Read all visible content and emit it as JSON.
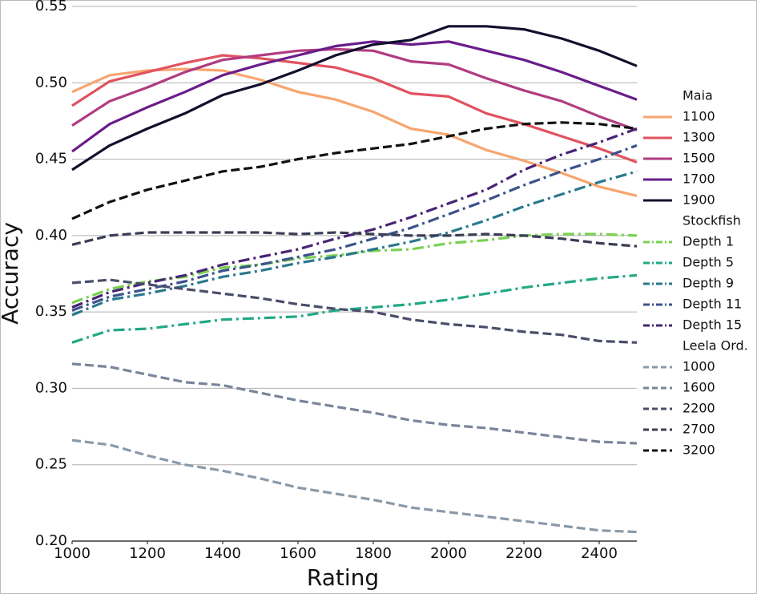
{
  "chart_data": {
    "type": "line",
    "xlabel": "Rating",
    "ylabel": "Accuracy",
    "x": [
      1000,
      1100,
      1200,
      1300,
      1400,
      1500,
      1600,
      1700,
      1800,
      1900,
      2000,
      2100,
      2200,
      2300,
      2400,
      2500
    ],
    "xlim": [
      1000,
      2500
    ],
    "xticks": [
      1000,
      1200,
      1400,
      1600,
      1800,
      2000,
      2200,
      2400
    ],
    "ylim": [
      0.2,
      0.55
    ],
    "yticks": [
      {
        "value": 0.2,
        "label": "0.20"
      },
      {
        "value": 0.25,
        "label": "0.25"
      },
      {
        "value": 0.3,
        "label": "0.30"
      },
      {
        "value": 0.35,
        "label": "0.35"
      },
      {
        "value": 0.4,
        "label": "0.40"
      },
      {
        "value": 0.45,
        "label": "0.45"
      },
      {
        "value": 0.5,
        "label": "0.50"
      },
      {
        "value": 0.55,
        "label": "0.55"
      }
    ],
    "grid": true,
    "series": [
      {
        "group": "Maia",
        "name": "1100",
        "color": "#f8a56f",
        "linestyle": "solid",
        "values": [
          0.494,
          0.505,
          0.508,
          0.509,
          0.508,
          0.502,
          0.494,
          0.489,
          0.481,
          0.47,
          0.466,
          0.456,
          0.449,
          0.441,
          0.432,
          0.426
        ]
      },
      {
        "group": "Maia",
        "name": "1300",
        "color": "#e0525f",
        "linestyle": "solid",
        "values": [
          0.485,
          0.501,
          0.507,
          0.513,
          0.518,
          0.516,
          0.513,
          0.51,
          0.503,
          0.493,
          0.491,
          0.48,
          0.473,
          0.465,
          0.457,
          0.448
        ]
      },
      {
        "group": "Maia",
        "name": "1500",
        "color": "#b03c81",
        "linestyle": "solid",
        "values": [
          0.472,
          0.488,
          0.497,
          0.507,
          0.515,
          0.518,
          0.521,
          0.522,
          0.521,
          0.514,
          0.512,
          0.503,
          0.495,
          0.488,
          0.478,
          0.469
        ]
      },
      {
        "group": "Maia",
        "name": "1700",
        "color": "#6a1c8a",
        "linestyle": "solid",
        "values": [
          0.455,
          0.473,
          0.484,
          0.494,
          0.505,
          0.512,
          0.518,
          0.524,
          0.527,
          0.525,
          0.527,
          0.521,
          0.515,
          0.507,
          0.498,
          0.489
        ]
      },
      {
        "group": "Maia",
        "name": "1900",
        "color": "#13102d",
        "linestyle": "solid",
        "values": [
          0.443,
          0.459,
          0.47,
          0.48,
          0.492,
          0.499,
          0.508,
          0.518,
          0.525,
          0.528,
          0.537,
          0.537,
          0.535,
          0.529,
          0.521,
          0.511
        ]
      },
      {
        "group": "Stockfish",
        "name": "Depth 1",
        "color": "#7ad151",
        "linestyle": "dashdot",
        "values": [
          0.356,
          0.365,
          0.37,
          0.373,
          0.379,
          0.381,
          0.385,
          0.387,
          0.39,
          0.391,
          0.395,
          0.397,
          0.4,
          0.401,
          0.401,
          0.4
        ]
      },
      {
        "group": "Stockfish",
        "name": "Depth 5",
        "color": "#22a884",
        "linestyle": "dashdot",
        "values": [
          0.33,
          0.338,
          0.339,
          0.342,
          0.345,
          0.346,
          0.347,
          0.351,
          0.353,
          0.355,
          0.358,
          0.362,
          0.366,
          0.369,
          0.372,
          0.374
        ]
      },
      {
        "group": "Stockfish",
        "name": "Depth 9",
        "color": "#2a788e",
        "linestyle": "dashdot",
        "values": [
          0.348,
          0.358,
          0.362,
          0.367,
          0.373,
          0.377,
          0.382,
          0.386,
          0.391,
          0.396,
          0.402,
          0.41,
          0.419,
          0.427,
          0.435,
          0.442
        ]
      },
      {
        "group": "Stockfish",
        "name": "Depth 11",
        "color": "#3b528b",
        "linestyle": "dashdot",
        "values": [
          0.351,
          0.36,
          0.365,
          0.37,
          0.377,
          0.381,
          0.386,
          0.391,
          0.398,
          0.405,
          0.414,
          0.423,
          0.433,
          0.442,
          0.45,
          0.459
        ]
      },
      {
        "group": "Stockfish",
        "name": "Depth 15",
        "color": "#482475",
        "linestyle": "dashdot",
        "values": [
          0.353,
          0.363,
          0.369,
          0.374,
          0.381,
          0.386,
          0.391,
          0.398,
          0.404,
          0.412,
          0.421,
          0.43,
          0.443,
          0.453,
          0.461,
          0.47
        ]
      },
      {
        "group": "Leela Ord.",
        "name": "1000",
        "color": "#8a9aa9",
        "linestyle": "dashed",
        "values": [
          0.266,
          0.263,
          0.256,
          0.25,
          0.246,
          0.241,
          0.235,
          0.231,
          0.227,
          0.222,
          0.219,
          0.216,
          0.213,
          0.21,
          0.207,
          0.206
        ]
      },
      {
        "group": "Leela Ord.",
        "name": "1600",
        "color": "#7a859a",
        "linestyle": "dashed",
        "values": [
          0.316,
          0.314,
          0.309,
          0.304,
          0.302,
          0.297,
          0.292,
          0.288,
          0.284,
          0.279,
          0.276,
          0.274,
          0.271,
          0.268,
          0.265,
          0.264
        ]
      },
      {
        "group": "Leela Ord.",
        "name": "2200",
        "color": "#4a4e6a",
        "linestyle": "dashed",
        "values": [
          0.369,
          0.371,
          0.368,
          0.365,
          0.362,
          0.359,
          0.355,
          0.352,
          0.35,
          0.345,
          0.342,
          0.34,
          0.337,
          0.335,
          0.331,
          0.33
        ]
      },
      {
        "group": "Leela Ord.",
        "name": "2700",
        "color": "#3a3d55",
        "linestyle": "dashed",
        "values": [
          0.394,
          0.4,
          0.402,
          0.402,
          0.402,
          0.402,
          0.401,
          0.402,
          0.401,
          0.4,
          0.4,
          0.401,
          0.4,
          0.398,
          0.395,
          0.393
        ]
      },
      {
        "group": "Leela Ord.",
        "name": "3200",
        "color": "#111111",
        "linestyle": "dashed",
        "values": [
          0.411,
          0.422,
          0.43,
          0.436,
          0.442,
          0.445,
          0.45,
          0.454,
          0.457,
          0.46,
          0.465,
          0.47,
          0.473,
          0.474,
          0.473,
          0.47
        ]
      }
    ]
  }
}
